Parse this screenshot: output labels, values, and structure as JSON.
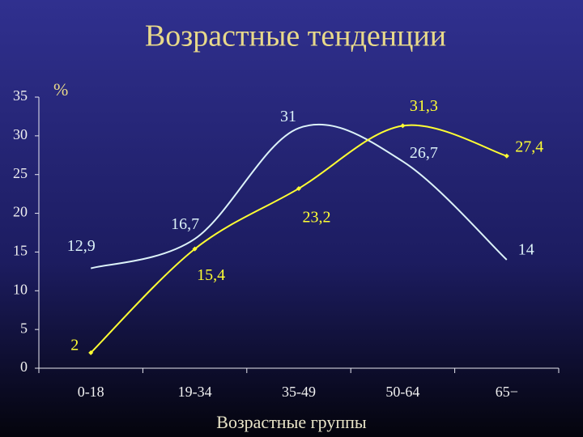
{
  "chart_data": {
    "type": "line",
    "title": "Возрастные тенденции",
    "y_label": "%",
    "x_label": "Возрастные группы",
    "categories": [
      "0-18",
      "19-34",
      "35-49",
      "50-64",
      "65−"
    ],
    "series": [
      {
        "color": "#dcf2f8",
        "markers": false,
        "values": [
          12.9,
          16.7,
          31,
          26.7,
          14
        ],
        "value_labels": [
          "12,9",
          "16,7",
          "31",
          "26,7",
          "14"
        ]
      },
      {
        "color": "#ffff33",
        "markers": true,
        "values": [
          2,
          15.4,
          23.2,
          31.3,
          27.4
        ],
        "value_labels": [
          "2",
          "15,4",
          "23,2",
          "31,3",
          "27,4"
        ]
      }
    ],
    "ylim": [
      0,
      35
    ],
    "yticks": [
      0,
      5,
      10,
      15,
      20,
      25,
      30,
      35
    ]
  }
}
